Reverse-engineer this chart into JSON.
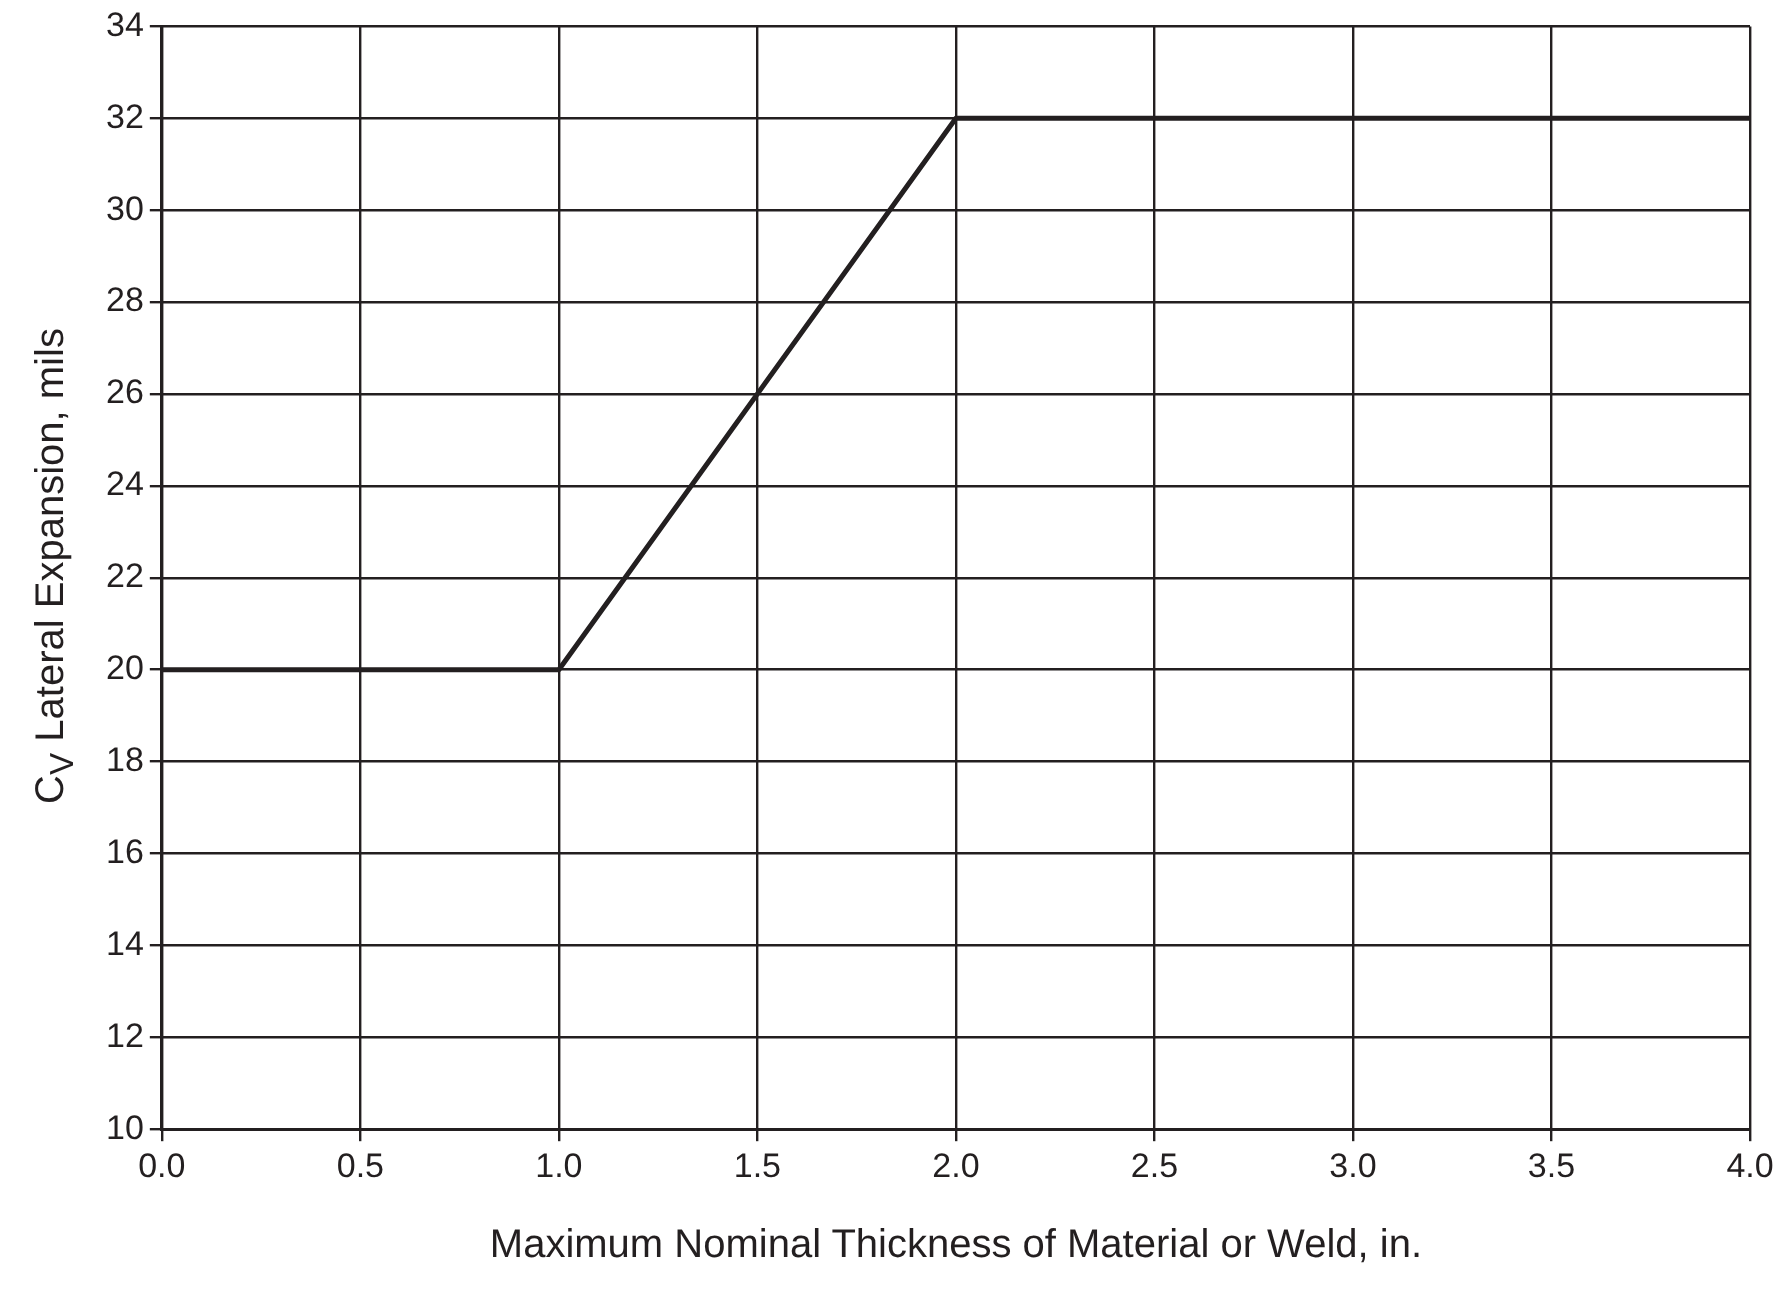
{
  "chart_data": {
    "type": "line",
    "xlabel": "Maximum Nominal Thickness of Material or Weld, in.",
    "ylabel": "C$_{V}$ Lateral Expansion, mils",
    "x": [
      0,
      1,
      2,
      4
    ],
    "values": [
      20,
      20,
      32,
      32
    ],
    "color": "#231f20",
    "xlim": [
      0,
      4
    ],
    "ylim": [
      10,
      34
    ],
    "xticks": [
      {
        "value": 0,
        "label": "0.0"
      },
      {
        "value": 0.5,
        "label": "0.5"
      },
      {
        "value": 1,
        "label": "1.0"
      },
      {
        "value": 1.5,
        "label": "1.5"
      },
      {
        "value": 2,
        "label": "2.0"
      },
      {
        "value": 2.5,
        "label": "2.5"
      },
      {
        "value": 3,
        "label": "3.0"
      },
      {
        "value": 3.5,
        "label": "3.5"
      },
      {
        "value": 4,
        "label": "4.0"
      }
    ],
    "yticks": [
      10,
      12,
      14,
      16,
      18,
      20,
      22,
      24,
      26,
      28,
      30,
      32,
      34
    ],
    "grid": true,
    "marker": "none",
    "line_style": "solid"
  }
}
